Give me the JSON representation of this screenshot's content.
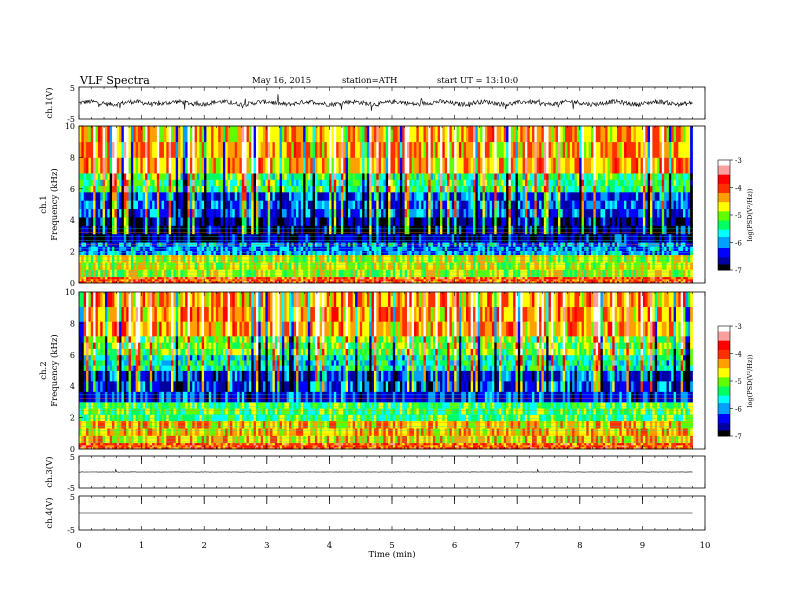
{
  "header": {
    "title": "VLF  Spectra",
    "date": "May 16, 2015",
    "station": "station=ATH",
    "start": "start  UT  =   13:10:0"
  },
  "chart_data": [
    {
      "type": "line",
      "name": "ch1-waveform",
      "ylabel": "ch.1(V)",
      "ylim": [
        -5,
        5
      ],
      "y_ticks": [
        "5",
        "-5"
      ],
      "xlim": [
        0,
        10
      ],
      "note_values": "noisy waveform around 0 V, amplitude about ±1 V, with sharp spikes",
      "x_end": 9.8
    },
    {
      "type": "heatmap",
      "name": "ch1-spectrogram",
      "ylabel_top": "ch.1",
      "ylabel": "Frequency (kHz)",
      "ylim": [
        0,
        10
      ],
      "y_ticks": [
        "0",
        "2",
        "4",
        "6",
        "8",
        "10"
      ],
      "xlim": [
        0,
        9.8
      ],
      "colorbar": {
        "label": "log(PSD(V²/Hz))",
        "range": [
          -7,
          -3
        ],
        "ticks": [
          "-3",
          "-4",
          "-5",
          "-6",
          "-7"
        ]
      },
      "bands": [
        {
          "f": [
            0,
            0.4
          ],
          "level": -4.0
        },
        {
          "f": [
            0.4,
            1.8
          ],
          "level": -4.8
        },
        {
          "f": [
            1.8,
            2.6
          ],
          "level": -6.0
        },
        {
          "f": [
            2.6,
            4.2
          ],
          "level": -6.7
        },
        {
          "f": [
            4.2,
            5.8
          ],
          "level": -6.2
        },
        {
          "f": [
            5.8,
            7.0
          ],
          "level": -5.3
        },
        {
          "f": [
            7.0,
            10.0
          ],
          "level": -4.4
        }
      ]
    },
    {
      "type": "heatmap",
      "name": "ch2-spectrogram",
      "ylabel_top": "ch.2",
      "ylabel": "Frequency (kHz)",
      "ylim": [
        0,
        10
      ],
      "y_ticks": [
        "0",
        "2",
        "4",
        "6",
        "8",
        "10"
      ],
      "xlim": [
        0,
        9.8
      ],
      "colorbar": {
        "label": "log(PSD(V²/Hz))",
        "range": [
          -7,
          -3
        ],
        "ticks": [
          "-3",
          "-4",
          "-5",
          "-6",
          "-7"
        ]
      },
      "bands": [
        {
          "f": [
            0,
            0.4
          ],
          "level": -4.0
        },
        {
          "f": [
            0.4,
            1.8
          ],
          "level": -4.5
        },
        {
          "f": [
            1.8,
            3.0
          ],
          "level": -5.2
        },
        {
          "f": [
            3.0,
            5.0
          ],
          "level": -6.3
        },
        {
          "f": [
            5.0,
            6.0
          ],
          "level": -5.6
        },
        {
          "f": [
            6.0,
            7.2
          ],
          "level": -5.0
        },
        {
          "f": [
            7.2,
            10.0
          ],
          "level": -4.3
        }
      ]
    },
    {
      "type": "line",
      "name": "ch3-waveform",
      "ylabel": "ch.3(V)",
      "ylim": [
        -5,
        5
      ],
      "y_ticks": [
        "5",
        "-5"
      ],
      "xlim": [
        0,
        10
      ],
      "note_values": "nearly flat line near 0 V",
      "x_end": 9.8
    },
    {
      "type": "line",
      "name": "ch4-waveform",
      "ylabel": "ch.4(V)",
      "ylim": [
        -5,
        5
      ],
      "y_ticks": [
        "5",
        "-5"
      ],
      "xlim": [
        0,
        10
      ],
      "note_values": "flat line near 0 V",
      "x_end": 9.8
    }
  ],
  "xaxis": {
    "label": "Time  (min)",
    "ticks": [
      "0",
      "1",
      "2",
      "3",
      "4",
      "5",
      "6",
      "7",
      "8",
      "9",
      "10"
    ],
    "range": [
      0,
      10
    ]
  },
  "colors": {
    "palette": [
      "#000000",
      "#0000a0",
      "#0000ff",
      "#00a0ff",
      "#00ffff",
      "#00ff60",
      "#60ff00",
      "#ffff00",
      "#ffa000",
      "#ff3000",
      "#ff0000",
      "#ffa0a0",
      "#ffffff"
    ]
  }
}
